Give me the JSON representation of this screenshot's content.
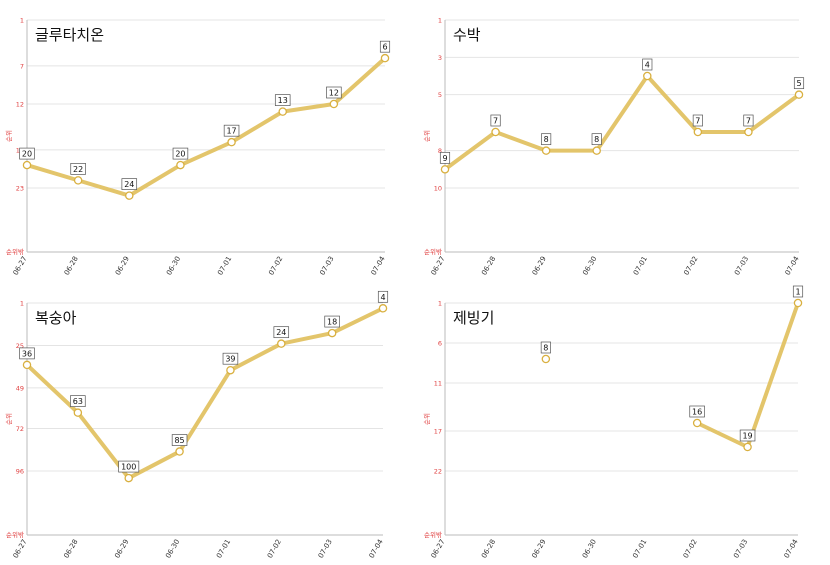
{
  "chart_data": [
    {
      "type": "line",
      "title": "글루타치온",
      "ylabel": "순위",
      "bottom_label": "순위밖",
      "y_reversed": true,
      "ylim": [
        1,
        28
      ],
      "yticks": [
        1,
        7,
        12,
        18,
        23
      ],
      "categories": [
        "06-27",
        "06-28",
        "06-29",
        "06-30",
        "07-01",
        "07-02",
        "07-03",
        "07-04"
      ],
      "values": [
        20,
        22,
        24,
        20,
        17,
        13,
        12,
        6
      ],
      "grid": true
    },
    {
      "type": "line",
      "title": "수박",
      "ylabel": "순위",
      "bottom_label": "순위밖",
      "y_reversed": true,
      "ylim": [
        1,
        12
      ],
      "yticks": [
        1,
        3,
        5,
        8,
        10
      ],
      "categories": [
        "06-27",
        "06-28",
        "06-29",
        "06-30",
        "07-01",
        "07-02",
        "07-03",
        "07-04"
      ],
      "values": [
        9,
        7,
        8,
        8,
        4,
        7,
        7,
        5
      ],
      "grid": true
    },
    {
      "type": "line",
      "title": "복숭아",
      "ylabel": "순위",
      "bottom_label": "순위밖",
      "y_reversed": true,
      "ylim": [
        1,
        120
      ],
      "yticks": [
        1,
        25,
        49,
        72,
        96
      ],
      "categories": [
        "06-27",
        "06-28",
        "06-29",
        "06-30",
        "07-01",
        "07-02",
        "07-03",
        "07-04"
      ],
      "values": [
        36,
        63,
        100,
        85,
        39,
        24,
        18,
        4
      ],
      "grid": true
    },
    {
      "type": "line",
      "title": "제빙기",
      "ylabel": "순위",
      "bottom_label": "순위밖",
      "y_reversed": true,
      "ylim": [
        1,
        28
      ],
      "yticks": [
        1,
        6,
        11,
        17,
        22
      ],
      "categories": [
        "06-27",
        "06-28",
        "06-29",
        "06-30",
        "07-01",
        "07-02",
        "07-03",
        "07-04"
      ],
      "values": [
        null,
        null,
        8,
        null,
        null,
        16,
        19,
        1
      ],
      "grid": true
    }
  ],
  "colors": {
    "line": "#e3c56b",
    "point_fill": "#ffffff",
    "point_stroke": "#d9b040",
    "grid": "#e4e4e4",
    "axis": "#bbbbbb",
    "y_tick": "#e04040"
  }
}
